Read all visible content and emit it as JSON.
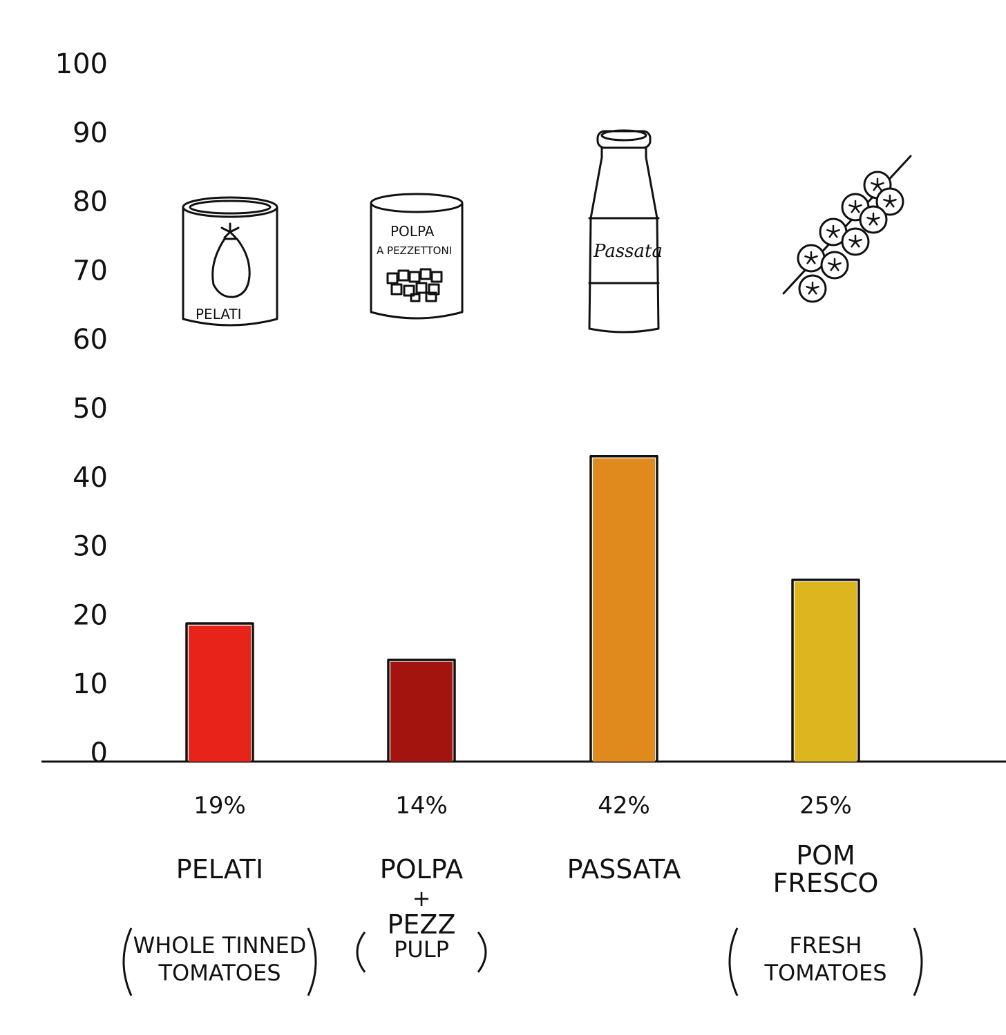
{
  "chart_data": {
    "type": "bar",
    "title": "",
    "xlabel": "",
    "ylabel": "",
    "ylim": [
      0,
      100
    ],
    "yticks": [
      "0",
      "10",
      "20",
      "30",
      "40",
      "50",
      "60",
      "70",
      "80",
      "90",
      "100"
    ],
    "grid": false,
    "categories": [
      {
        "name": "PELATI",
        "value": 19,
        "value_label": "19%",
        "label_lines": [
          "PELATI"
        ],
        "sub_lines": [
          "WHOLE TINNED",
          "TOMATOES"
        ],
        "color": "#e8241a",
        "icon": "tomato-can-icon",
        "icon_text": [
          "PELATI"
        ]
      },
      {
        "name": "POLPA + PEZZ",
        "value": 14,
        "value_label": "14%",
        "label_lines": [
          "POLPA",
          "+",
          "PEZZ"
        ],
        "sub_lines": [
          "PULP"
        ],
        "color": "#a3140f",
        "icon": "pulp-can-icon",
        "icon_text": [
          "POLPA",
          "A PEZZETTONI"
        ]
      },
      {
        "name": "PASSATA",
        "value": 42,
        "value_label": "42%",
        "label_lines": [
          "PASSATA"
        ],
        "sub_lines": [],
        "color": "#e08a1e",
        "icon": "passata-bottle-icon",
        "icon_text": [
          "Passata"
        ]
      },
      {
        "name": "POM FRESCO",
        "value": 25,
        "value_label": "25%",
        "label_lines": [
          "POM",
          "FRESCO"
        ],
        "sub_lines": [
          "FRESH",
          "TOMATOES"
        ],
        "color": "#ddb51f",
        "icon": "cherry-tomato-vine-icon",
        "icon_text": []
      }
    ]
  }
}
